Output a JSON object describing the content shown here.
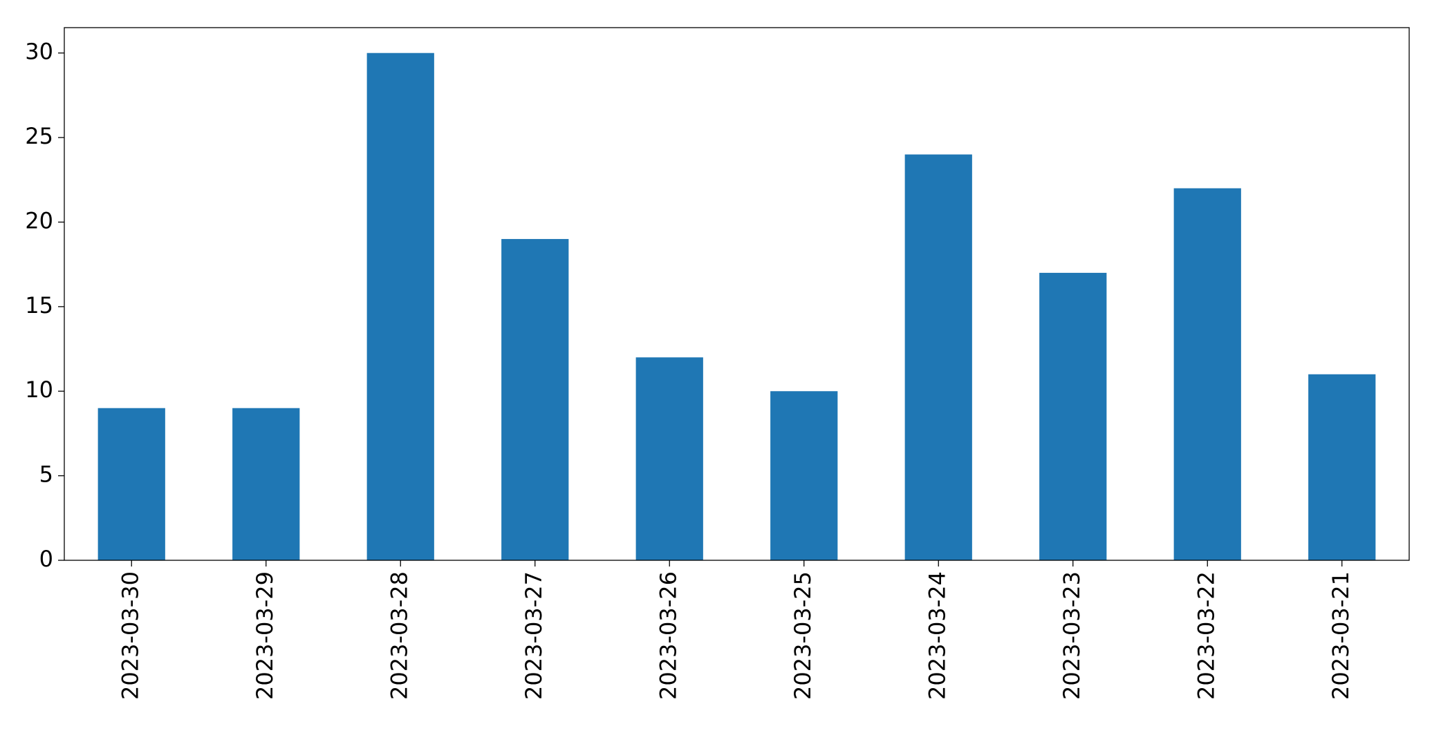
{
  "chart_data": {
    "type": "bar",
    "categories": [
      "2023-03-30",
      "2023-03-29",
      "2023-03-28",
      "2023-03-27",
      "2023-03-26",
      "2023-03-25",
      "2023-03-24",
      "2023-03-23",
      "2023-03-22",
      "2023-03-21"
    ],
    "values": [
      9,
      9,
      30,
      19,
      12,
      10,
      24,
      17,
      22,
      11
    ],
    "color": "#1f77b4",
    "ylim": [
      0,
      31.5
    ],
    "yticks": [
      0,
      5,
      10,
      15,
      20,
      25,
      30
    ],
    "grid": false
  }
}
